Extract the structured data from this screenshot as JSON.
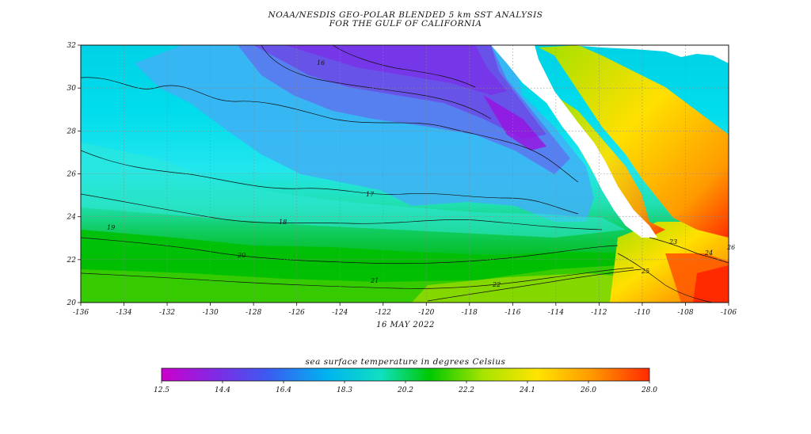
{
  "title_line1": "NOAA/NESDIS GEO-POLAR BLENDED 5 km SST ANALYSIS",
  "title_line2": "FOR THE GULF OF CALIFORNIA",
  "date": "16 MAY 2022",
  "colorbar_title": "sea surface temperature in degrees Celsius",
  "lon_ticks": [
    "-136",
    "-134",
    "-132",
    "-130",
    "-128",
    "-126",
    "-124",
    "-122",
    "-120",
    "-118",
    "-116",
    "-114",
    "-112",
    "-110",
    "-108",
    "-106"
  ],
  "lat_ticks": [
    "20",
    "22",
    "24",
    "26",
    "28",
    "30",
    "32"
  ],
  "colorbar_ticks": [
    "12.5",
    "14.4",
    "16.4",
    "18.3",
    "20.2",
    "22.2",
    "24.1",
    "26.0",
    "28.0"
  ],
  "contour_labels": [
    "16",
    "17",
    "18",
    "19",
    "20",
    "21",
    "22",
    "23",
    "24",
    "25",
    "26"
  ],
  "colors": {
    "land": "#ffffff",
    "contour": "#111111",
    "grid": "#888888",
    "scale": [
      "#cc00cc",
      "#7a2ee6",
      "#3a5cf0",
      "#00b4f0",
      "#10e0c0",
      "#00c800",
      "#a8e400",
      "#ffe400",
      "#ff9a00",
      "#ff2a00"
    ]
  }
}
